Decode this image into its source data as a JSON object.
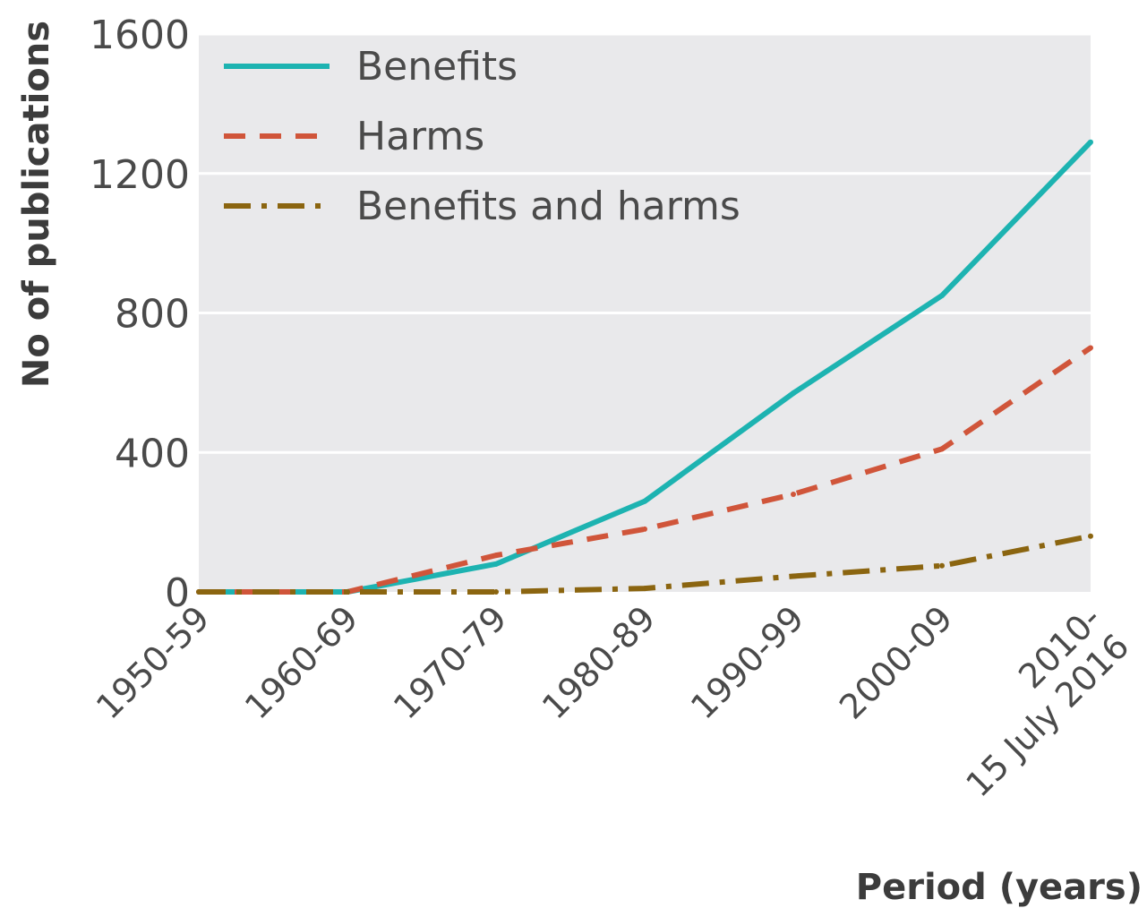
{
  "chart_data": {
    "type": "line",
    "xlabel": "Period (years)",
    "ylabel": "No of publications",
    "categories": [
      "1950-59",
      "1960-69",
      "1970-79",
      "1980-89",
      "1990-99",
      "2000-09",
      "2010-15 July 2016"
    ],
    "category_lines": [
      [
        "1950-59"
      ],
      [
        "1960-69"
      ],
      [
        "1970-79"
      ],
      [
        "1980-89"
      ],
      [
        "1990-99"
      ],
      [
        "2000-09"
      ],
      [
        "2010-",
        "15 July 2016"
      ]
    ],
    "ylim": [
      0,
      1600
    ],
    "yticks": [
      0,
      400,
      800,
      1200,
      1600
    ],
    "grid": true,
    "legend_position": "top-left",
    "series": [
      {
        "name": "Benefits",
        "color": "#1db3b1",
        "style": "solid",
        "values": [
          0,
          0,
          80,
          260,
          570,
          850,
          1290
        ]
      },
      {
        "name": "Harms",
        "color": "#d0553a",
        "style": "dashed",
        "values": [
          0,
          0,
          105,
          180,
          280,
          410,
          700
        ]
      },
      {
        "name": "Benefits and harms",
        "color": "#8b6510",
        "style": "dashdot",
        "values": [
          0,
          0,
          0,
          10,
          45,
          75,
          160
        ]
      }
    ]
  }
}
